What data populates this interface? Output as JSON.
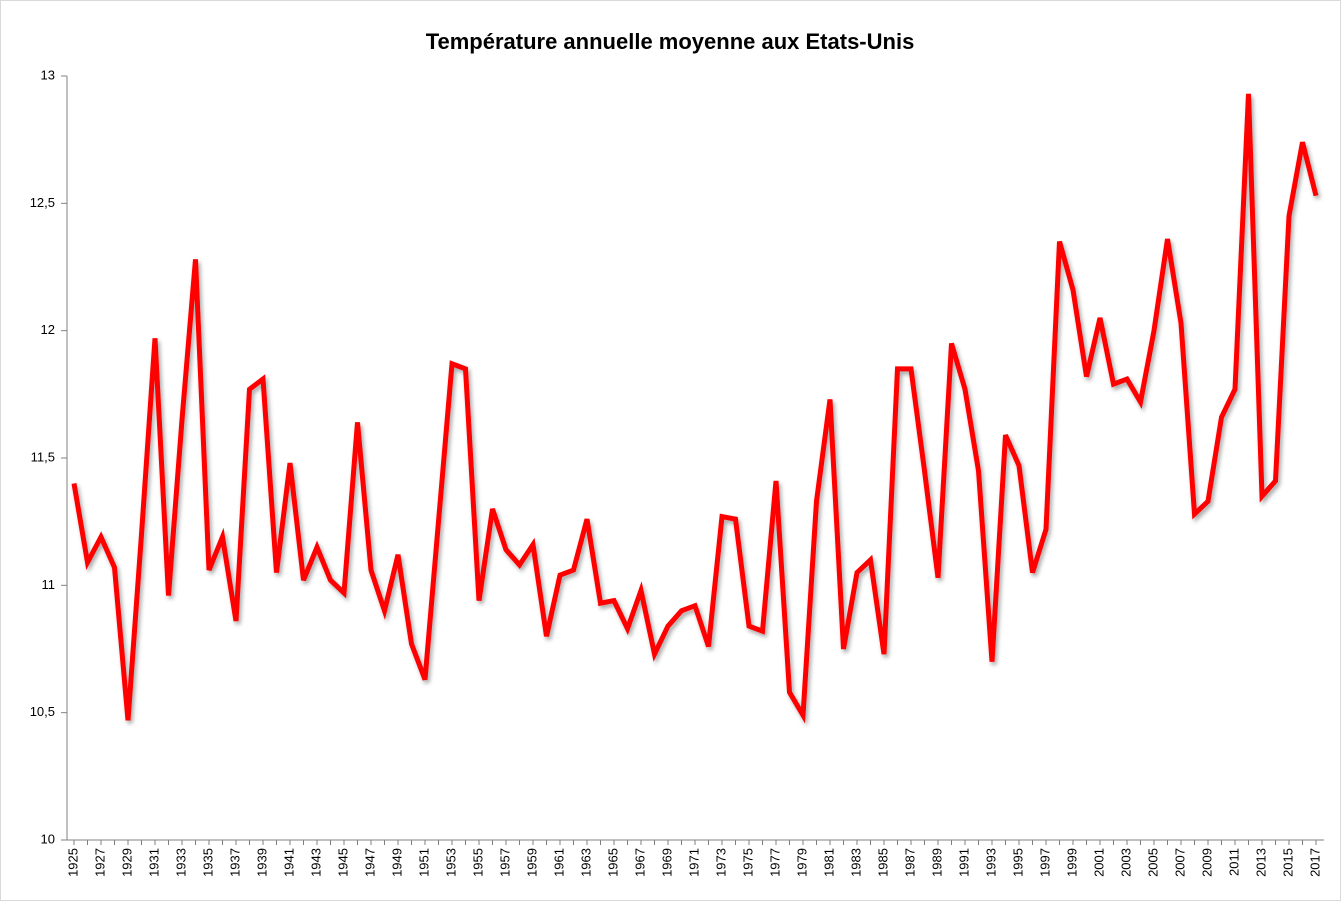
{
  "chart_data": {
    "type": "line",
    "title": "Température annuelle moyenne aux Etats-Unis",
    "categories": [
      "1925",
      null,
      "1927",
      null,
      "1929",
      null,
      "1931",
      null,
      "1933",
      null,
      "1935",
      null,
      "1937",
      null,
      "1939",
      null,
      "1941",
      null,
      "1943",
      null,
      "1945",
      null,
      "1947",
      null,
      "1949",
      null,
      "1951",
      null,
      "1953",
      null,
      "1955",
      null,
      "1957",
      null,
      "1959",
      null,
      "1961",
      null,
      "1963",
      null,
      "1965",
      null,
      "1967",
      null,
      "1969",
      null,
      "1971",
      null,
      "1973",
      null,
      "1975",
      null,
      "1977",
      null,
      "1979",
      null,
      "1981",
      null,
      "1983",
      null,
      "1985",
      null,
      "1987",
      null,
      "1989",
      null,
      "1991",
      null,
      "1993",
      null,
      "1995",
      null,
      "1997",
      null,
      "1999",
      null,
      "2001",
      null,
      "2003",
      null,
      "2005",
      null,
      "2007",
      null,
      "2009",
      null,
      "2011",
      null,
      "2013",
      null,
      "2015",
      null,
      "2017"
    ],
    "values": [
      11.4,
      11.09,
      11.19,
      11.07,
      10.47,
      11.2,
      11.97,
      10.96,
      11.65,
      12.28,
      11.06,
      11.19,
      10.86,
      11.77,
      11.81,
      11.05,
      11.48,
      11.02,
      11.15,
      11.02,
      10.97,
      11.64,
      11.06,
      10.9,
      11.12,
      10.77,
      10.63,
      11.25,
      11.87,
      11.85,
      10.94,
      11.3,
      11.14,
      11.08,
      11.16,
      10.8,
      11.04,
      11.06,
      11.26,
      10.93,
      10.94,
      10.83,
      10.98,
      10.73,
      10.84,
      10.9,
      10.92,
      10.76,
      11.27,
      11.26,
      10.84,
      10.82,
      11.41,
      10.58,
      10.49,
      11.33,
      11.73,
      10.75,
      11.05,
      11.1,
      10.73,
      11.85,
      11.85,
      11.45,
      11.03,
      11.95,
      11.77,
      11.45,
      10.7,
      11.59,
      11.47,
      11.05,
      11.22,
      12.35,
      12.16,
      11.82,
      12.05,
      11.79,
      11.81,
      11.72,
      12.0,
      12.36,
      12.03,
      11.28,
      11.33,
      11.66,
      11.77,
      12.93,
      11.35,
      11.41,
      12.45,
      12.74,
      12.53
    ],
    "color": "#ff0000",
    "ylim": [
      10,
      13
    ],
    "yticks": [
      10,
      {
        "value": 10.5,
        "label": "10,5"
      },
      11,
      {
        "value": 11.5,
        "label": "11,5"
      },
      12,
      {
        "value": 12.5,
        "label": "12,5"
      },
      13
    ]
  }
}
